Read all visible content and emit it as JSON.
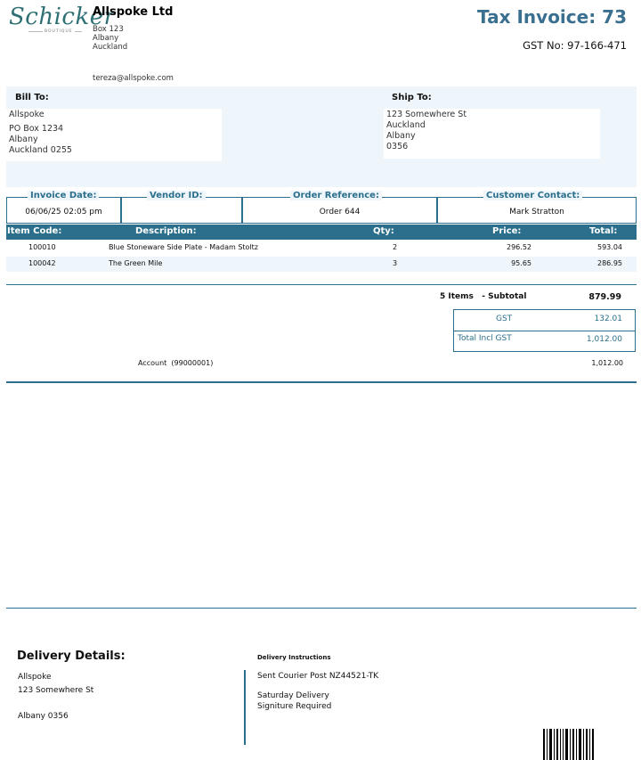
{
  "logo": {
    "script_text": "Schicker",
    "subtitle": "BOUTIQUE"
  },
  "company": {
    "name": "Allspoke Ltd",
    "address_lines": [
      "Box 123",
      "Albany",
      "Auckland"
    ],
    "email": "tereza@allspoke.com"
  },
  "invoice": {
    "title": "Tax Invoice: 73",
    "gst_no": "GST No: 97-166-471"
  },
  "bill_to": {
    "label": "Bill To:",
    "lines": [
      "Allspoke",
      "PO Box 1234",
      "Albany",
      "Auckland 0255"
    ]
  },
  "ship_to": {
    "label": "Ship To:",
    "lines": [
      "123 Somewhere St",
      "Auckland",
      "Albany",
      "0356"
    ]
  },
  "meta": [
    {
      "label": "Invoice Date:",
      "value": "06/06/25 02:05 pm"
    },
    {
      "label": "Vendor ID:",
      "value": ""
    },
    {
      "label": "Order Reference:",
      "value": "Order 644"
    },
    {
      "label": "Customer Contact:",
      "value": "Mark Stratton"
    }
  ],
  "table": {
    "headers": {
      "code": "Item Code:",
      "desc": "Description:",
      "qty": "Qty:",
      "price": "Price:",
      "total": "Total:"
    },
    "rows": [
      {
        "code": "100010",
        "desc": "Blue Stoneware Side Plate - Madam Stoltz",
        "qty": "2",
        "price": "296.52",
        "total": "593.04"
      },
      {
        "code": "100042",
        "desc": "The Green Mile",
        "qty": "3",
        "price": "95.65",
        "total": "286.95"
      }
    ]
  },
  "totals": {
    "items_subtotal_label": "5 Items   - Subtotal",
    "subtotal": "879.99",
    "gst_label": "GST",
    "gst": "132.01",
    "total_label": "Total Incl GST",
    "total": "1,012.00",
    "account_label": "Account  (99000001)",
    "account_amount": "1,012.00"
  },
  "delivery": {
    "title": "Delivery Details:",
    "lines": [
      "Allspoke",
      "123 Somewhere St",
      "",
      "Albany 0356"
    ],
    "instructions_label": "Delivery Instructions",
    "instruction_1": "Sent Courier Post NZ44521-TK",
    "instruction_2": "Saturday Delivery",
    "instruction_3": "Signiture Required"
  },
  "colors": {
    "accent": "#2b6f8c",
    "panel_bg": "#eef6fb",
    "logo": "#2e6f73"
  }
}
